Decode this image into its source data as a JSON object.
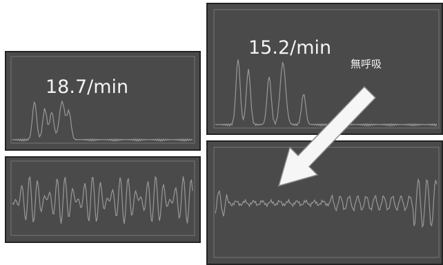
{
  "panels": [
    {
      "rate": "18.7/min"
    },
    {
      "rate": "15.2/min",
      "annotation": "無呼吸"
    }
  ]
}
